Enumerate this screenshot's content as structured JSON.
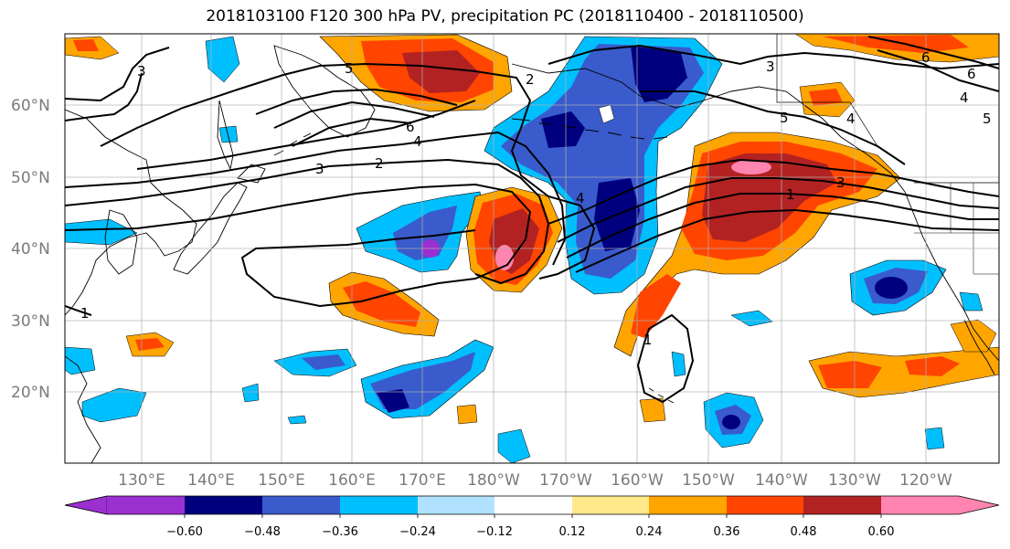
{
  "title": "2018103100 F120 300 hPa PV, precipitation PC (2018110400 - 2018110500)",
  "lat_labels": [
    "60°N",
    "50°N",
    "40°N",
    "30°N",
    "20°N"
  ],
  "lon_labels": [
    "130°E",
    "140°E",
    "150°E",
    "160°E",
    "170°E",
    "180°W",
    "170°W",
    "160°W",
    "150°W",
    "140°W",
    "130°W",
    "120°W"
  ],
  "colorbar": {
    "colors": [
      "#9b30d0",
      "#00007f",
      "#3a5bcc",
      "#00bfff",
      "#b0e2ff",
      "#ffffff",
      "#ffe98a",
      "#ffa500",
      "#ff4500",
      "#b22222",
      "#ff85b0"
    ],
    "tick_labels": [
      "−0.60",
      "−0.48",
      "−0.36",
      "−0.24",
      "−0.12",
      "0.12",
      "0.24",
      "0.36",
      "0.48",
      "0.60"
    ]
  },
  "pv_contour_labels": [
    "3",
    "5",
    "2",
    "6",
    "4",
    "3",
    "2",
    "1",
    "6",
    "5",
    "4",
    "3",
    "1",
    "4",
    "1",
    "3",
    "6",
    "4",
    "5"
  ]
}
